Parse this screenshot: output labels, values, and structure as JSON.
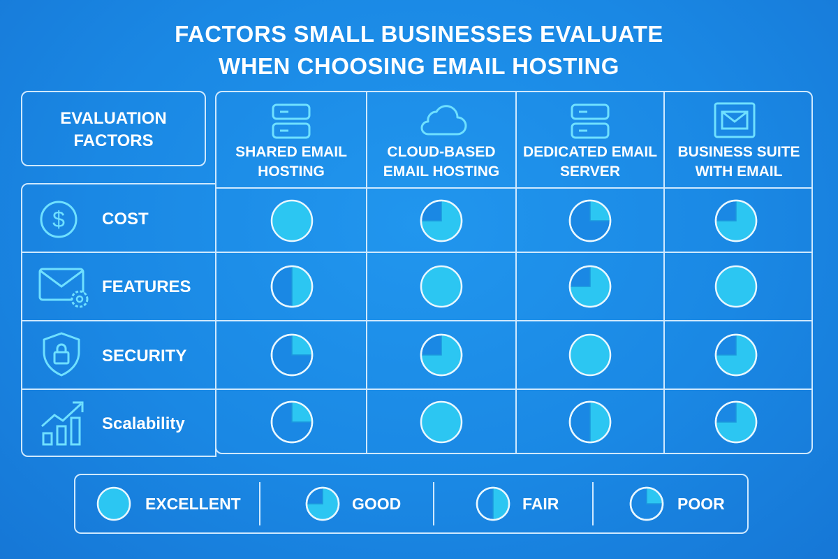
{
  "title": {
    "line1": "FACTORS SMALL BUSINESSES EVALUATE",
    "line2": "WHEN CHOOSING EMAIL HOSTING"
  },
  "factors_header": {
    "line1": "EVALUATION",
    "line2": "FACTORS"
  },
  "columns": [
    {
      "line1": "SHARED EMAIL",
      "line2": "HOSTING",
      "icon": "server-icon"
    },
    {
      "line1": "CLOUD-BASED",
      "line2": "EMAIL HOSTING",
      "icon": "cloud-icon"
    },
    {
      "line1": "DEDICATED EMAIL",
      "line2": "SERVER",
      "icon": "server-icon"
    },
    {
      "line1": "BUSINESS SUITE",
      "line2": "WITH EMAIL",
      "icon": "envelope-icon"
    }
  ],
  "rows": [
    {
      "label": "COST",
      "icon": "dollar-icon",
      "ratings": [
        "excellent",
        "good",
        "poor",
        "good"
      ]
    },
    {
      "label": "FEATURES",
      "icon": "envelope-gear-icon",
      "ratings": [
        "fair",
        "excellent",
        "good",
        "excellent"
      ]
    },
    {
      "label": "SECURITY",
      "icon": "shield-lock-icon",
      "ratings": [
        "poor",
        "good",
        "excellent",
        "good"
      ]
    },
    {
      "label": "Scalability",
      "icon": "growth-chart-icon",
      "ratings": [
        "poor",
        "excellent",
        "fair",
        "good"
      ]
    }
  ],
  "rating_levels": {
    "excellent": 1.0,
    "good": 0.75,
    "fair": 0.5,
    "poor": 0.25
  },
  "legend": [
    {
      "key": "excellent",
      "label": "EXCELLENT"
    },
    {
      "key": "good",
      "label": "GOOD"
    },
    {
      "key": "fair",
      "label": "FAIR"
    },
    {
      "key": "poor",
      "label": "POOR"
    }
  ],
  "colors": {
    "background": "#1a88e4",
    "line": "#cfe9ff",
    "icon": "#6fe0ff",
    "fill": "#2cc6f2",
    "fill_dark": "#1b97dd"
  }
}
